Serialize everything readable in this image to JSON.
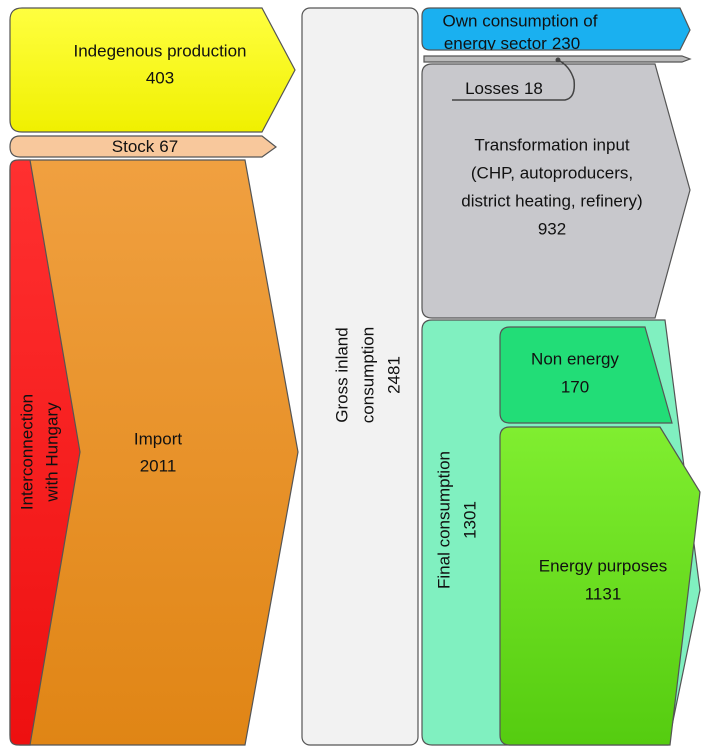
{
  "nodes": [
    {
      "lines": [
        "Indegenous production"
      ],
      "value": 403
    },
    {
      "lines": [
        "Stock"
      ],
      "value": 67
    },
    {
      "lines": [
        "Interconnection",
        "with Hungary"
      ]
    },
    {
      "lines": [
        "Import"
      ],
      "value": 2011
    },
    {
      "lines": [
        "Gross inland",
        "consumption"
      ],
      "value": 2481
    },
    {
      "lines": [
        "Own consumption of",
        "energy sector"
      ],
      "value": 230
    },
    {
      "lines": [
        "Losses"
      ],
      "value": 18
    },
    {
      "lines": [
        "Transformation input",
        "(CHP, autoproducers,",
        "district heating, refinery)"
      ],
      "value": 932
    },
    {
      "lines": [
        "Final consumption"
      ],
      "value": 1301
    },
    {
      "lines": [
        "Non energy"
      ],
      "value": 170
    },
    {
      "lines": [
        "Energy purposes"
      ],
      "value": 1131
    }
  ]
}
